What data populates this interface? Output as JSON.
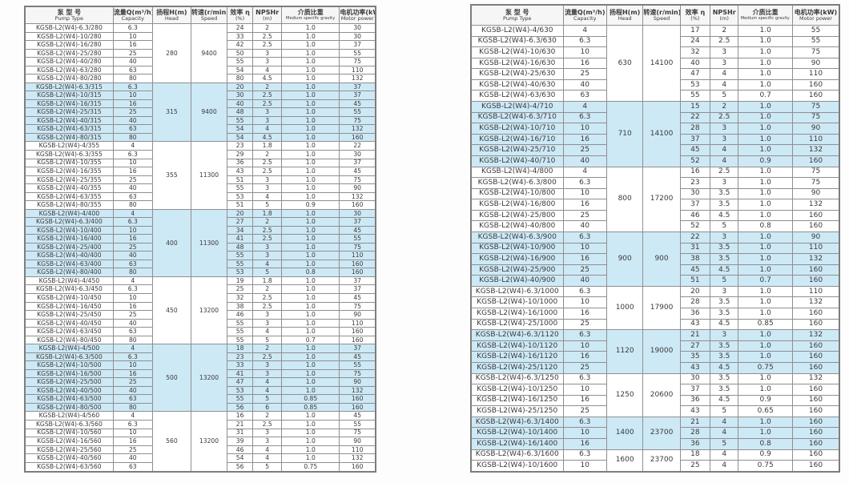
{
  "colors": {
    "highlight_row": "#cde9f6",
    "grid_line": "#8f8f8f",
    "header_bg": "#f6f6f6",
    "text": "#3a3a3a"
  },
  "columns": {
    "pump_type_zh": "泵 型 号",
    "pump_type_en": "Pump Type",
    "capacity_zh": "流量Q(m³/h)",
    "capacity_en": "Capacity",
    "head_zh": "扬程H(m)",
    "head_en": "Head",
    "speed_zh": "转速(r/min)",
    "speed_en": "Speed",
    "efficiency_zh": "效率 η",
    "efficiency_en": "(%)",
    "npshr_zh": "NPSHr",
    "npshr_en": "(m)",
    "gravity_zh": "介质比重",
    "gravity_en": "Medium specific gravity",
    "power_zh": "电机功率(kW)",
    "power_en": "Motor power"
  },
  "row_fields": [
    "pump_type",
    "capacity",
    "efficiency_pct",
    "npshr_m",
    "medium_specific_gravity",
    "motor_power_kw"
  ],
  "tables": [
    {
      "side": "left",
      "groups": [
        {
          "head": "280",
          "speed": "9400",
          "highlight": false,
          "rows": [
            [
              "KGSB-L2(W4)-6.3/280",
              "6.3",
              "24",
              "2",
              "1.0",
              "30"
            ],
            [
              "KGSB-L2(W4)-10/280",
              "10",
              "33",
              "2.5",
              "1.0",
              "30"
            ],
            [
              "KGSB-L2(W4)-16/280",
              "16",
              "42",
              "2.5",
              "1.0",
              "37"
            ],
            [
              "KGSB-L2(W4)-25/280",
              "25",
              "50",
              "3",
              "1.0",
              "55"
            ],
            [
              "KGSB-L2(W4)-40/280",
              "40",
              "55",
              "3",
              "1.0",
              "75"
            ],
            [
              "KGSB-L2(W4)-63/280",
              "63",
              "54",
              "4",
              "1.0",
              "110"
            ],
            [
              "KGSB-L2(W4)-80/280",
              "80",
              "80",
              "4.5",
              "1.0",
              "132"
            ]
          ]
        },
        {
          "head": "315",
          "speed": "9400",
          "highlight": true,
          "rows": [
            [
              "KGSB-L2(W4)-6.3/315",
              "6.3",
              "20",
              "2",
              "1.0",
              "37"
            ],
            [
              "KGSB-L2(W4)-10/315",
              "10",
              "30",
              "2.5",
              "1.0",
              "37"
            ],
            [
              "KGSB-L2(W4)-16/315",
              "16",
              "40",
              "2.5",
              "1.0",
              "45"
            ],
            [
              "KGSB-L2(W4)-25/315",
              "25",
              "48",
              "3",
              "1.0",
              "55"
            ],
            [
              "KGSB-L2(W4)-40/315",
              "40",
              "55",
              "3",
              "1.0",
              "75"
            ],
            [
              "KGSB-L2(W4)-63/315",
              "63",
              "54",
              "4",
              "1.0",
              "132"
            ],
            [
              "KGSB-L2(W4)-80/315",
              "80",
              "54",
              "4.5",
              "1.0",
              "160"
            ]
          ]
        },
        {
          "head": "355",
          "speed": "11300",
          "highlight": false,
          "rows": [
            [
              "KGSB-L2(W4)-4/355",
              "4",
              "23",
              "1.8",
              "1.0",
              "22"
            ],
            [
              "KGSB-L2(W4)-6.3/355",
              "6.3",
              "29",
              "2",
              "1.0",
              "30"
            ],
            [
              "KGSB-L2(W4)-10/355",
              "10",
              "36",
              "2.5",
              "1.0",
              "37"
            ],
            [
              "KGSB-L2(W4)-16/355",
              "16",
              "43",
              "2.5",
              "1.0",
              "45"
            ],
            [
              "KGSB-L2(W4)-25/355",
              "25",
              "51",
              "3",
              "1.0",
              "75"
            ],
            [
              "KGSB-L2(W4)-40/355",
              "40",
              "55",
              "3",
              "1.0",
              "90"
            ],
            [
              "KGSB-L2(W4)-63/355",
              "63",
              "53",
              "4",
              "1.0",
              "132"
            ],
            [
              "KGSB-L2(W4)-80/355",
              "80",
              "51",
              "5",
              "0.9",
              "160"
            ]
          ]
        },
        {
          "head": "400",
          "speed": "11300",
          "highlight": true,
          "rows": [
            [
              "KGSB-L2(W4)-4/400",
              "4",
              "20",
              "1.8",
              "1.0",
              "30"
            ],
            [
              "KGSB-L2(W4)-6.3/400",
              "6.3",
              "27",
              "2",
              "1.0",
              "37"
            ],
            [
              "KGSB-L2(W4)-10/400",
              "10",
              "34",
              "2.5",
              "1.0",
              "45"
            ],
            [
              "KGSB-L2(W4)-16/400",
              "16",
              "41",
              "2.5",
              "1.0",
              "55"
            ],
            [
              "KGSB-L2(W4)-25/400",
              "25",
              "48",
              "3",
              "1.0",
              "75"
            ],
            [
              "KGSB-L2(W4)-40/400",
              "40",
              "55",
              "3",
              "1.0",
              "110"
            ],
            [
              "KGSB-L2(W4)-63/400",
              "63",
              "55",
              "4",
              "1.0",
              "160"
            ],
            [
              "KGSB-L2(W4)-80/400",
              "80",
              "53",
              "5",
              "0.8",
              "160"
            ]
          ]
        },
        {
          "head": "450",
          "speed": "13200",
          "highlight": false,
          "rows": [
            [
              "KGSB-L2(W4)-4/450",
              "4",
              "19",
              "1.8",
              "1.0",
              "37"
            ],
            [
              "KGSB-L2(W4)-6.3/450",
              "6.3",
              "25",
              "2",
              "1.0",
              "37"
            ],
            [
              "KGSB-L2(W4)-10/450",
              "10",
              "32",
              "2.5",
              "1.0",
              "45"
            ],
            [
              "KGSB-L2(W4)-16/450",
              "16",
              "38",
              "2.5",
              "1.0",
              "75"
            ],
            [
              "KGSB-L2(W4)-25/450",
              "25",
              "46",
              "3",
              "1.0",
              "90"
            ],
            [
              "KGSB-L2(W4)-40/450",
              "40",
              "55",
              "3",
              "1.0",
              "110"
            ],
            [
              "KGSB-L2(W4)-63/450",
              "63",
              "55",
              "4",
              "1.0",
              "160"
            ],
            [
              "KGSB-L2(W4)-80/450",
              "80",
              "55",
              "5",
              "0.7",
              "160"
            ]
          ]
        },
        {
          "head": "500",
          "speed": "13200",
          "highlight": true,
          "rows": [
            [
              "KGSB-L2(W4)-4/500",
              "4",
              "18",
              "2",
              "1.0",
              "37"
            ],
            [
              "KGSB-L2(W4)-6.3/500",
              "6.3",
              "23",
              "2.5",
              "1.0",
              "45"
            ],
            [
              "KGSB-L2(W4)-10/500",
              "10",
              "33",
              "3",
              "1.0",
              "55"
            ],
            [
              "KGSB-L2(W4)-16/500",
              "16",
              "41",
              "3",
              "1.0",
              "75"
            ],
            [
              "KGSB-L2(W4)-25/500",
              "25",
              "47",
              "4",
              "1.0",
              "90"
            ],
            [
              "KGSB-L2(W4)-40/500",
              "40",
              "53",
              "4",
              "1.0",
              "132"
            ],
            [
              "KGSB-L2(W4)-63/500",
              "63",
              "55",
              "5",
              "0.85",
              "160"
            ],
            [
              "KGSB-L2(W4)-80/500",
              "80",
              "56",
              "6",
              "0.85",
              "160"
            ]
          ]
        },
        {
          "head": "560",
          "speed": "13200",
          "highlight": false,
          "rows": [
            [
              "KGSB-L2(W4)-4/560",
              "4",
              "16",
              "2",
              "1.0",
              "45"
            ],
            [
              "KGSB-L2(W4)-6.3/560",
              "6.3",
              "21",
              "2.5",
              "1.0",
              "55"
            ],
            [
              "KGSB-L2(W4)-10/560",
              "10",
              "31",
              "3",
              "1.0",
              "75"
            ],
            [
              "KGSB-L2(W4)-16/560",
              "16",
              "39",
              "3",
              "1.0",
              "90"
            ],
            [
              "KGSB-L2(W4)-25/560",
              "25",
              "46",
              "4",
              "1.0",
              "110"
            ],
            [
              "KGSB-L2(W4)-40/560",
              "40",
              "54",
              "4",
              "1.0",
              "132"
            ],
            [
              "KGSB-L2(W4)-63/560",
              "63",
              "56",
              "5",
              "0.75",
              "160"
            ]
          ]
        }
      ]
    },
    {
      "side": "right",
      "groups": [
        {
          "head": "630",
          "speed": "14100",
          "highlight": false,
          "rows": [
            [
              "KGSB-L2(W4)-4/630",
              "4",
              "17",
              "2",
              "1.0",
              "55"
            ],
            [
              "KGSB-L2(W4)-6.3/630",
              "6.3",
              "24",
              "2.5",
              "1.0",
              "55"
            ],
            [
              "KGSB-L2(W4)-10/630",
              "10",
              "32",
              "3",
              "1.0",
              "75"
            ],
            [
              "KGSB-L2(W4)-16/630",
              "16",
              "40",
              "3",
              "1.0",
              "90"
            ],
            [
              "KGSB-L2(W4)-25/630",
              "25",
              "47",
              "4",
              "1.0",
              "110"
            ],
            [
              "KGSB-L2(W4)-40/630",
              "40",
              "53",
              "4",
              "1.0",
              "160"
            ],
            [
              "KGSB-L2(W4)-63/630",
              "63",
              "55",
              "5",
              "0.7",
              "160"
            ]
          ]
        },
        {
          "head": "710",
          "speed": "14100",
          "highlight": true,
          "rows": [
            [
              "KGSB-L2(W4)-4/710",
              "4",
              "15",
              "2",
              "1.0",
              "75"
            ],
            [
              "KGSB-L2(W4)-6.3/710",
              "6.3",
              "22",
              "2.5",
              "1.0",
              "75"
            ],
            [
              "KGSB-L2(W4)-10/710",
              "10",
              "28",
              "3",
              "1.0",
              "90"
            ],
            [
              "KGSB-L2(W4)-16/710",
              "16",
              "37",
              "3",
              "1.0",
              "110"
            ],
            [
              "KGSB-L2(W4)-25/710",
              "25",
              "45",
              "4",
              "1.0",
              "132"
            ],
            [
              "KGSB-L2(W4)-40/710",
              "40",
              "52",
              "4",
              "0.9",
              "160"
            ]
          ]
        },
        {
          "head": "800",
          "speed": "17200",
          "highlight": false,
          "rows": [
            [
              "KGSB-L2(W4)-4/800",
              "4",
              "16",
              "2.5",
              "1.0",
              "75"
            ],
            [
              "KGSB-L2(W4)-6.3/800",
              "6.3",
              "23",
              "3",
              "1.0",
              "75"
            ],
            [
              "KGSB-L2(W4)-10/800",
              "10",
              "30",
              "3.5",
              "1.0",
              "90"
            ],
            [
              "KGSB-L2(W4)-16/800",
              "16",
              "37",
              "3.5",
              "1.0",
              "132"
            ],
            [
              "KGSB-L2(W4)-25/800",
              "25",
              "46",
              "4.5",
              "1.0",
              "160"
            ],
            [
              "KGSB-L2(W4)-40/800",
              "40",
              "52",
              "5",
              "0.8",
              "160"
            ]
          ]
        },
        {
          "head": "900",
          "speed": "900",
          "highlight": true,
          "rows": [
            [
              "KGSB-L2(W4)-6.3/900",
              "6.3",
              "22",
              "3",
              "1.0",
              "90"
            ],
            [
              "KGSB-L2(W4)-10/900",
              "10",
              "31",
              "3.5",
              "1.0",
              "110"
            ],
            [
              "KGSB-L2(W4)-16/900",
              "16",
              "38",
              "3.5",
              "1.0",
              "132"
            ],
            [
              "KGSB-L2(W4)-25/900",
              "25",
              "45",
              "4.5",
              "1.0",
              "160"
            ],
            [
              "KGSB-L2(W4)-40/900",
              "40",
              "51",
              "5",
              "0.7",
              "160"
            ]
          ]
        },
        {
          "head": "1000",
          "speed": "17900",
          "highlight": false,
          "rows": [
            [
              "KGSB-L2(W4)-6.3/1000",
              "6.3",
              "20",
              "3",
              "1.0",
              "110"
            ],
            [
              "KGSB-L2(W4)-10/1000",
              "10",
              "28",
              "3.5",
              "1.0",
              "132"
            ],
            [
              "KGSB-L2(W4)-16/1000",
              "16",
              "36",
              "3.5",
              "1.0",
              "160"
            ],
            [
              "KGSB-L2(W4)-25/1000",
              "25",
              "43",
              "4.5",
              "0.85",
              "160"
            ]
          ]
        },
        {
          "head": "1120",
          "speed": "19000",
          "highlight": true,
          "rows": [
            [
              "KGSB-L2(W4)-6.3/1120",
              "6.3",
              "21",
              "3",
              "1.0",
              "132"
            ],
            [
              "KGSB-L2(W4)-10/1120",
              "10",
              "27",
              "3.5",
              "1.0",
              "160"
            ],
            [
              "KGSB-L2(W4)-16/1120",
              "16",
              "35",
              "3.5",
              "1.0",
              "160"
            ],
            [
              "KGSB-L2(W4)-25/1120",
              "25",
              "43",
              "4.5",
              "0.75",
              "160"
            ]
          ]
        },
        {
          "head": "1250",
          "speed": "20600",
          "highlight": false,
          "rows": [
            [
              "KGSB-L2(W4)-6.3/1250",
              "6.3",
              "30",
              "3.5",
              "1.0",
              "132"
            ],
            [
              "KGSB-L2(W4)-10/1250",
              "10",
              "37",
              "3.5",
              "1.0",
              "160"
            ],
            [
              "KGSB-L2(W4)-16/1250",
              "16",
              "36",
              "4.5",
              "0.9",
              "160"
            ],
            [
              "KGSB-L2(W4)-25/1250",
              "25",
              "43",
              "5",
              "0.65",
              "160"
            ]
          ]
        },
        {
          "head": "1400",
          "speed": "23700",
          "highlight": true,
          "rows": [
            [
              "KGSB-L2(W4)-6.3/1400",
              "6.3",
              "21",
              "4",
              "1.0",
              "160"
            ],
            [
              "KGSB-L2(W4)-10/1400",
              "10",
              "28",
              "4",
              "1.0",
              "160"
            ],
            [
              "KGSB-L2(W4)-16/1400",
              "16",
              "36",
              "5",
              "0.8",
              "160"
            ]
          ]
        },
        {
          "head": "1600",
          "speed": "23700",
          "highlight": false,
          "rows": [
            [
              "KGSB-L2(W4)-6.3/1600",
              "6.3",
              "18",
              "4",
              "0.9",
              "160"
            ],
            [
              "KGSB-L2(W4)-10/1600",
              "10",
              "25",
              "4",
              "0.75",
              "160"
            ]
          ]
        }
      ]
    }
  ]
}
